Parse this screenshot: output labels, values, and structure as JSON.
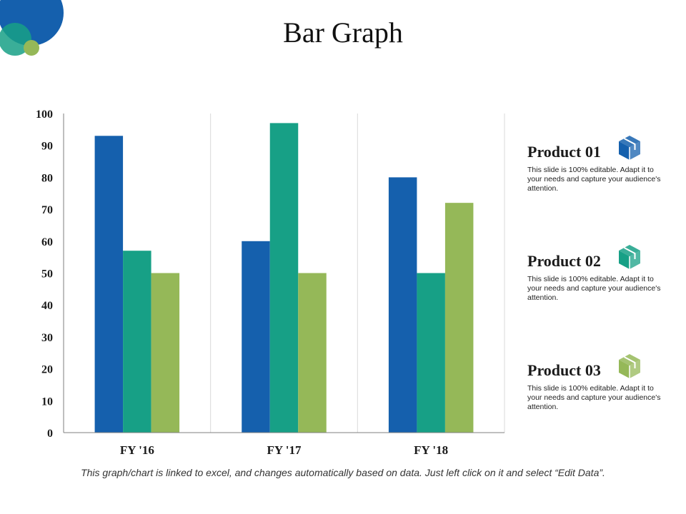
{
  "title": "Bar Graph",
  "chart_data": {
    "type": "bar",
    "title": "Bar Graph",
    "xlabel": "",
    "ylabel": "",
    "categories": [
      "FY '16",
      "FY '17",
      "FY '18"
    ],
    "series": [
      {
        "name": "Product 01",
        "color": "#1560ad",
        "values": [
          93,
          60,
          80
        ]
      },
      {
        "name": "Product 02",
        "color": "#17a086",
        "values": [
          57,
          97,
          50
        ]
      },
      {
        "name": "Product 03",
        "color": "#95b858",
        "values": [
          50,
          50,
          72
        ]
      }
    ],
    "ylim": [
      0,
      100
    ],
    "yticks": [
      0,
      10,
      20,
      30,
      40,
      50,
      60,
      70,
      80,
      90,
      100
    ],
    "grid": "vertical separators",
    "legend_position": "right"
  },
  "legend": [
    {
      "title": "Product 01",
      "description": "This slide is 100% editable. Adapt it to your needs and capture your audience's attention.",
      "color": "#1560ad",
      "icon": "box-icon"
    },
    {
      "title": "Product 02",
      "description": "This slide is 100% editable. Adapt it to your needs and capture your audience's attention.",
      "color": "#17a086",
      "icon": "box-icon"
    },
    {
      "title": "Product 03",
      "description": "This slide is 100% editable. Adapt it to your needs and capture your audience's attention.",
      "color": "#95b858",
      "icon": "box-icon"
    }
  ],
  "footer": "This graph/chart is linked to excel, and changes automatically based on data. Just left click on it and select “Edit Data”.",
  "theme": {
    "circle_large": "#1560ad",
    "circle_medium": "#17a086",
    "circle_small": "#95b858"
  }
}
